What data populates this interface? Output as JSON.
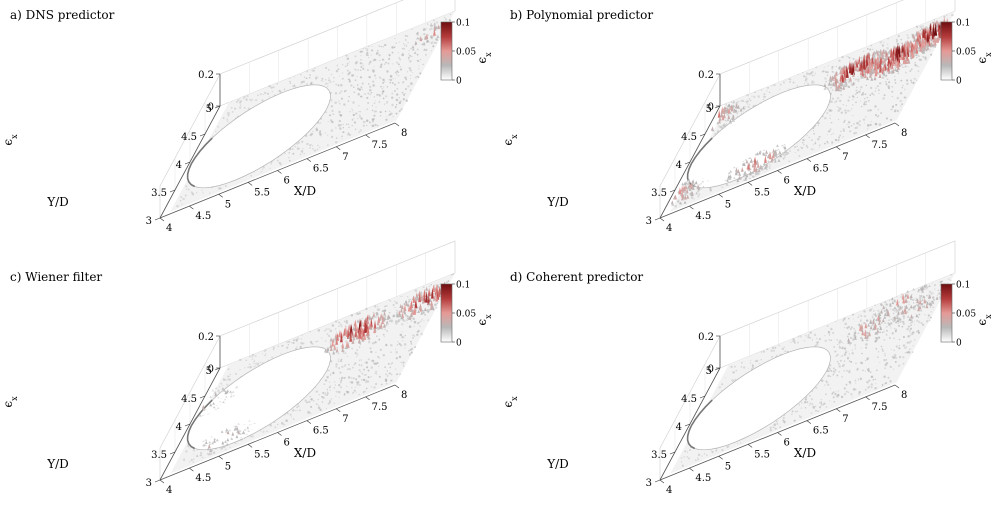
{
  "figure": {
    "colorbar": {
      "ticks": [
        "0.1",
        "0.05",
        "0"
      ],
      "label": "ϵ",
      "label_sub": "x",
      "stops": [
        "#ffffff",
        "#b8b8b8",
        "#e59a96",
        "#b33a3a",
        "#6e0d10"
      ]
    },
    "axes": {
      "x_label": "X/D",
      "y_label": "Y/D",
      "z_label": "ϵ",
      "z_label_sub": "x",
      "x_ticks": [
        "4",
        "4.5",
        "5",
        "5.5",
        "6",
        "6.5",
        "7",
        "7.5",
        "8"
      ],
      "y_ticks": [
        "3",
        "3.5",
        "4",
        "4.5",
        "5"
      ],
      "z_ticks": [
        "0.2",
        "0"
      ]
    }
  },
  "chart_data": [
    {
      "type": "heatmap",
      "subtype": "3d-surface",
      "title": "a) DNS predictor",
      "xlabel": "X/D",
      "ylabel": "Y/D",
      "zlabel": "ϵx",
      "xlim": [
        4,
        8
      ],
      "ylim": [
        3,
        5
      ],
      "zlim": [
        0,
        0.2
      ],
      "clim": [
        0,
        0.1
      ],
      "error_level": "low",
      "hotspots": [
        {
          "x": 7.8,
          "y": 4.6,
          "peak": 0.05
        }
      ]
    },
    {
      "type": "heatmap",
      "subtype": "3d-surface",
      "title": "b) Polynomial predictor",
      "xlabel": "X/D",
      "ylabel": "Y/D",
      "zlabel": "ϵx",
      "xlim": [
        4,
        8
      ],
      "ylim": [
        3,
        5
      ],
      "zlim": [
        0,
        0.2
      ],
      "clim": [
        0,
        0.1
      ],
      "error_level": "high",
      "hotspots": [
        {
          "x": 6.6,
          "y": 4.5,
          "peak": 0.1
        },
        {
          "x": 7.3,
          "y": 4.4,
          "peak": 0.1
        },
        {
          "x": 7.8,
          "y": 4.6,
          "peak": 0.1
        },
        {
          "x": 4.1,
          "y": 4.7,
          "peak": 0.06
        },
        {
          "x": 4.1,
          "y": 3.3,
          "peak": 0.06
        },
        {
          "x": 5.5,
          "y": 3.3,
          "peak": 0.06
        }
      ]
    },
    {
      "type": "heatmap",
      "subtype": "3d-surface",
      "title": "c) Wiener filter",
      "xlabel": "X/D",
      "ylabel": "Y/D",
      "zlabel": "ϵx",
      "xlim": [
        4,
        8
      ],
      "ylim": [
        3,
        5
      ],
      "zlim": [
        0,
        0.2
      ],
      "clim": [
        0,
        0.1
      ],
      "error_level": "medium",
      "hotspots": [
        {
          "x": 6.6,
          "y": 4.5,
          "peak": 0.1
        },
        {
          "x": 7.7,
          "y": 4.6,
          "peak": 0.09
        },
        {
          "x": 4.1,
          "y": 4.3,
          "peak": 0.04
        },
        {
          "x": 4.9,
          "y": 3.3,
          "peak": 0.04
        }
      ]
    },
    {
      "type": "heatmap",
      "subtype": "3d-surface",
      "title": "d) Coherent predictor",
      "xlabel": "X/D",
      "ylabel": "Y/D",
      "zlabel": "ϵx",
      "xlim": [
        4,
        8
      ],
      "ylim": [
        3,
        5
      ],
      "zlim": [
        0,
        0.2
      ],
      "clim": [
        0,
        0.1
      ],
      "error_level": "low-medium",
      "hotspots": [
        {
          "x": 6.8,
          "y": 4.5,
          "peak": 0.06
        },
        {
          "x": 7.6,
          "y": 4.5,
          "peak": 0.05
        },
        {
          "x": 7.2,
          "y": 4.8,
          "peak": 0.05
        }
      ]
    }
  ]
}
